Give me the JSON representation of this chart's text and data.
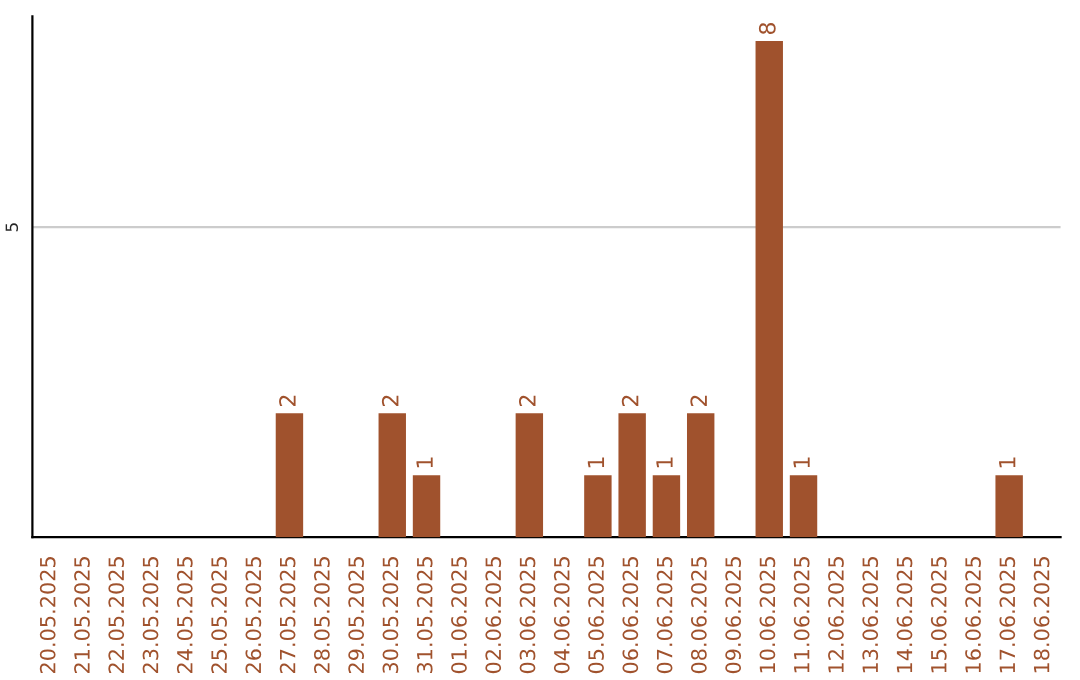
{
  "chart_data": {
    "type": "bar",
    "categories": [
      "20.05.2025",
      "21.05.2025",
      "22.05.2025",
      "23.05.2025",
      "24.05.2025",
      "25.05.2025",
      "26.05.2025",
      "27.05.2025",
      "28.05.2025",
      "29.05.2025",
      "30.05.2025",
      "31.05.2025",
      "01.06.2025",
      "02.06.2025",
      "03.06.2025",
      "04.06.2025",
      "05.06.2025",
      "06.06.2025",
      "07.06.2025",
      "08.06.2025",
      "09.06.2025",
      "10.06.2025",
      "11.06.2025",
      "12.06.2025",
      "13.06.2025",
      "14.06.2025",
      "15.06.2025",
      "16.06.2025",
      "17.06.2025",
      "18.06.2025"
    ],
    "values": [
      0,
      0,
      0,
      0,
      0,
      0,
      0,
      2,
      0,
      0,
      2,
      1,
      0,
      0,
      2,
      0,
      1,
      2,
      1,
      2,
      0,
      8,
      1,
      0,
      0,
      0,
      0,
      0,
      1,
      0
    ],
    "value_labels": [
      null,
      null,
      null,
      null,
      null,
      null,
      null,
      "2",
      null,
      null,
      "2",
      "1",
      null,
      null,
      "2",
      null,
      "1",
      "2",
      "1",
      "2",
      null,
      "8",
      "1",
      null,
      null,
      null,
      null,
      null,
      "1",
      null
    ],
    "color": "#a0522d",
    "ylim": [
      0,
      8.4
    ],
    "yticks": [
      {
        "value": 0,
        "label": null
      },
      5
    ],
    "grid": "y"
  }
}
